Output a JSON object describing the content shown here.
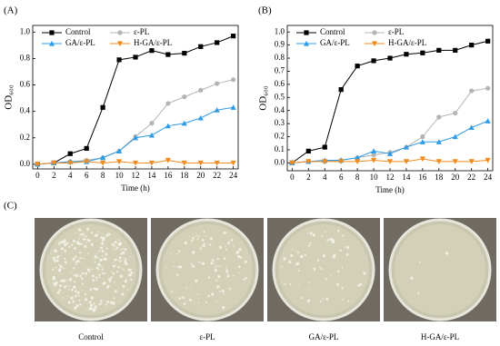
{
  "chart_data": [
    {
      "type": "line",
      "panel_label": "(A)",
      "x_label": "Time (h)",
      "y_label": "OD₆₀₀",
      "x": [
        0,
        2,
        4,
        6,
        8,
        10,
        12,
        14,
        16,
        18,
        20,
        22,
        24
      ],
      "series": [
        {
          "name": "Control",
          "color": "#000000",
          "marker": "square",
          "values": [
            0,
            0.01,
            0.08,
            0.12,
            0.43,
            0.79,
            0.81,
            0.86,
            0.83,
            0.84,
            0.89,
            0.92,
            0.97
          ]
        },
        {
          "name": "ε-PL",
          "color": "#b4b4b4",
          "marker": "circle",
          "values": [
            0,
            0.01,
            0.02,
            0.03,
            0.05,
            0.1,
            0.21,
            0.31,
            0.46,
            0.51,
            0.56,
            0.61,
            0.64
          ]
        },
        {
          "name": "GA/ε-PL",
          "color": "#2e9be6",
          "marker": "triangle-up",
          "values": [
            0,
            0.01,
            0.02,
            0.02,
            0.05,
            0.1,
            0.2,
            0.22,
            0.29,
            0.31,
            0.35,
            0.41,
            0.43
          ]
        },
        {
          "name": "H-GA/ε-PL",
          "color": "#f08c1e",
          "marker": "triangle-down",
          "values": [
            0,
            0.01,
            0.01,
            0.02,
            0.01,
            0.02,
            0.01,
            0.01,
            0.03,
            0.01,
            0.01,
            0.01,
            0.01
          ]
        }
      ],
      "xlim": [
        -0.6,
        24.6
      ],
      "xticks": [
        0,
        2,
        4,
        6,
        8,
        10,
        12,
        14,
        16,
        18,
        20,
        22,
        24
      ],
      "ylim": [
        -0.035,
        1.05
      ],
      "yticks": [
        {
          "value": 0,
          "label": "0.0"
        },
        {
          "value": 0.2,
          "label": "0.2"
        },
        {
          "value": 0.4,
          "label": "0.4"
        },
        {
          "value": 0.6,
          "label": "0.6"
        },
        {
          "value": 0.8,
          "label": "0.8"
        },
        {
          "value": 1.0,
          "label": "1.0"
        }
      ]
    },
    {
      "type": "line",
      "panel_label": "(B)",
      "x_label": "Time (h)",
      "y_label": "OD₆₀₀",
      "x": [
        0,
        2,
        4,
        6,
        8,
        10,
        12,
        14,
        16,
        18,
        20,
        22,
        24
      ],
      "series": [
        {
          "name": "Control",
          "color": "#000000",
          "marker": "square",
          "values": [
            0,
            0.09,
            0.12,
            0.56,
            0.74,
            0.78,
            0.8,
            0.83,
            0.84,
            0.86,
            0.86,
            0.9,
            0.93
          ]
        },
        {
          "name": "ε-PL",
          "color": "#b4b4b4",
          "marker": "circle",
          "values": [
            0,
            0.01,
            0.01,
            0.02,
            0.04,
            0.06,
            0.08,
            0.12,
            0.2,
            0.35,
            0.38,
            0.55,
            0.57
          ]
        },
        {
          "name": "GA/ε-PL",
          "color": "#2e9be6",
          "marker": "triangle-up",
          "values": [
            0,
            0.01,
            0.02,
            0.02,
            0.04,
            0.09,
            0.07,
            0.12,
            0.16,
            0.16,
            0.2,
            0.27,
            0.32
          ]
        },
        {
          "name": "H-GA/ε-PL",
          "color": "#f08c1e",
          "marker": "triangle-down",
          "values": [
            0,
            0.01,
            0.01,
            0.01,
            0.01,
            0.02,
            0.01,
            0.01,
            0.03,
            0.01,
            0.01,
            0.01,
            0.02
          ]
        }
      ],
      "xlim": [
        -0.6,
        24.6
      ],
      "xticks": [
        0,
        2,
        4,
        6,
        8,
        10,
        12,
        14,
        16,
        18,
        20,
        22,
        24
      ],
      "ylim": [
        -0.06,
        1.05
      ],
      "yticks": [
        {
          "value": 0,
          "label": "0.0"
        },
        {
          "value": 0.1,
          "label": "0.1"
        },
        {
          "value": 0.2,
          "label": "0.2"
        },
        {
          "value": 0.3,
          "label": "0.3"
        },
        {
          "value": 0.4,
          "label": "0.4"
        },
        {
          "value": 0.5,
          "label": "0.5"
        },
        {
          "value": 0.6,
          "label": "0.6"
        },
        {
          "value": 0.7,
          "label": "0.7"
        },
        {
          "value": 0.8,
          "label": "0.8"
        },
        {
          "value": 0.9,
          "label": "0.9"
        },
        {
          "value": 1.0,
          "label": "1.0"
        }
      ]
    }
  ],
  "panel_c": {
    "label": "(C)",
    "photos": [
      "Control",
      "ε-PL",
      "GA/ε-PL",
      "H-GA/ε-PL"
    ]
  }
}
